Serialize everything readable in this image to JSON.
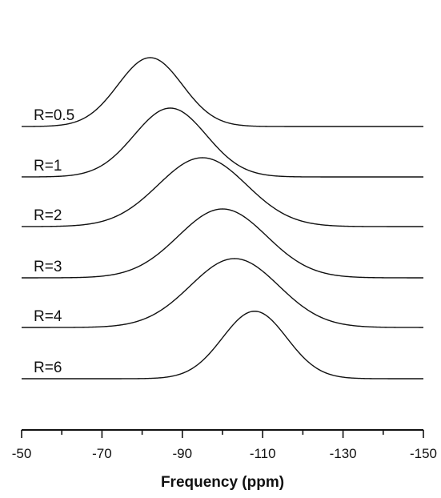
{
  "chart_data": {
    "type": "line",
    "title": "",
    "xlabel": "Frequency (ppm)",
    "ylabel": "",
    "xlim": [
      -50,
      -150
    ],
    "x_reversed": true,
    "xticks": [
      -50,
      -70,
      -90,
      -110,
      -130,
      -150
    ],
    "minor_xticks": [
      -60,
      -80,
      -100,
      -120,
      -140
    ],
    "legend": "labels on curves",
    "grid": false,
    "series": [
      {
        "name": "R=0.5",
        "peak_x": -82,
        "width_ppm": 8,
        "relative_height": 1.0
      },
      {
        "name": "R=1",
        "peak_x": -87,
        "width_ppm": 9,
        "relative_height": 1.0
      },
      {
        "name": "R=2",
        "peak_x": -95,
        "width_ppm": 11,
        "relative_height": 1.0
      },
      {
        "name": "R=3",
        "peak_x": -100,
        "width_ppm": 11,
        "relative_height": 1.0
      },
      {
        "name": "R=4",
        "peak_x": -103,
        "width_ppm": 11,
        "relative_height": 1.0
      },
      {
        "name": "R=6",
        "peak_x": -108,
        "width_ppm": 8,
        "relative_height": 0.98
      }
    ]
  }
}
